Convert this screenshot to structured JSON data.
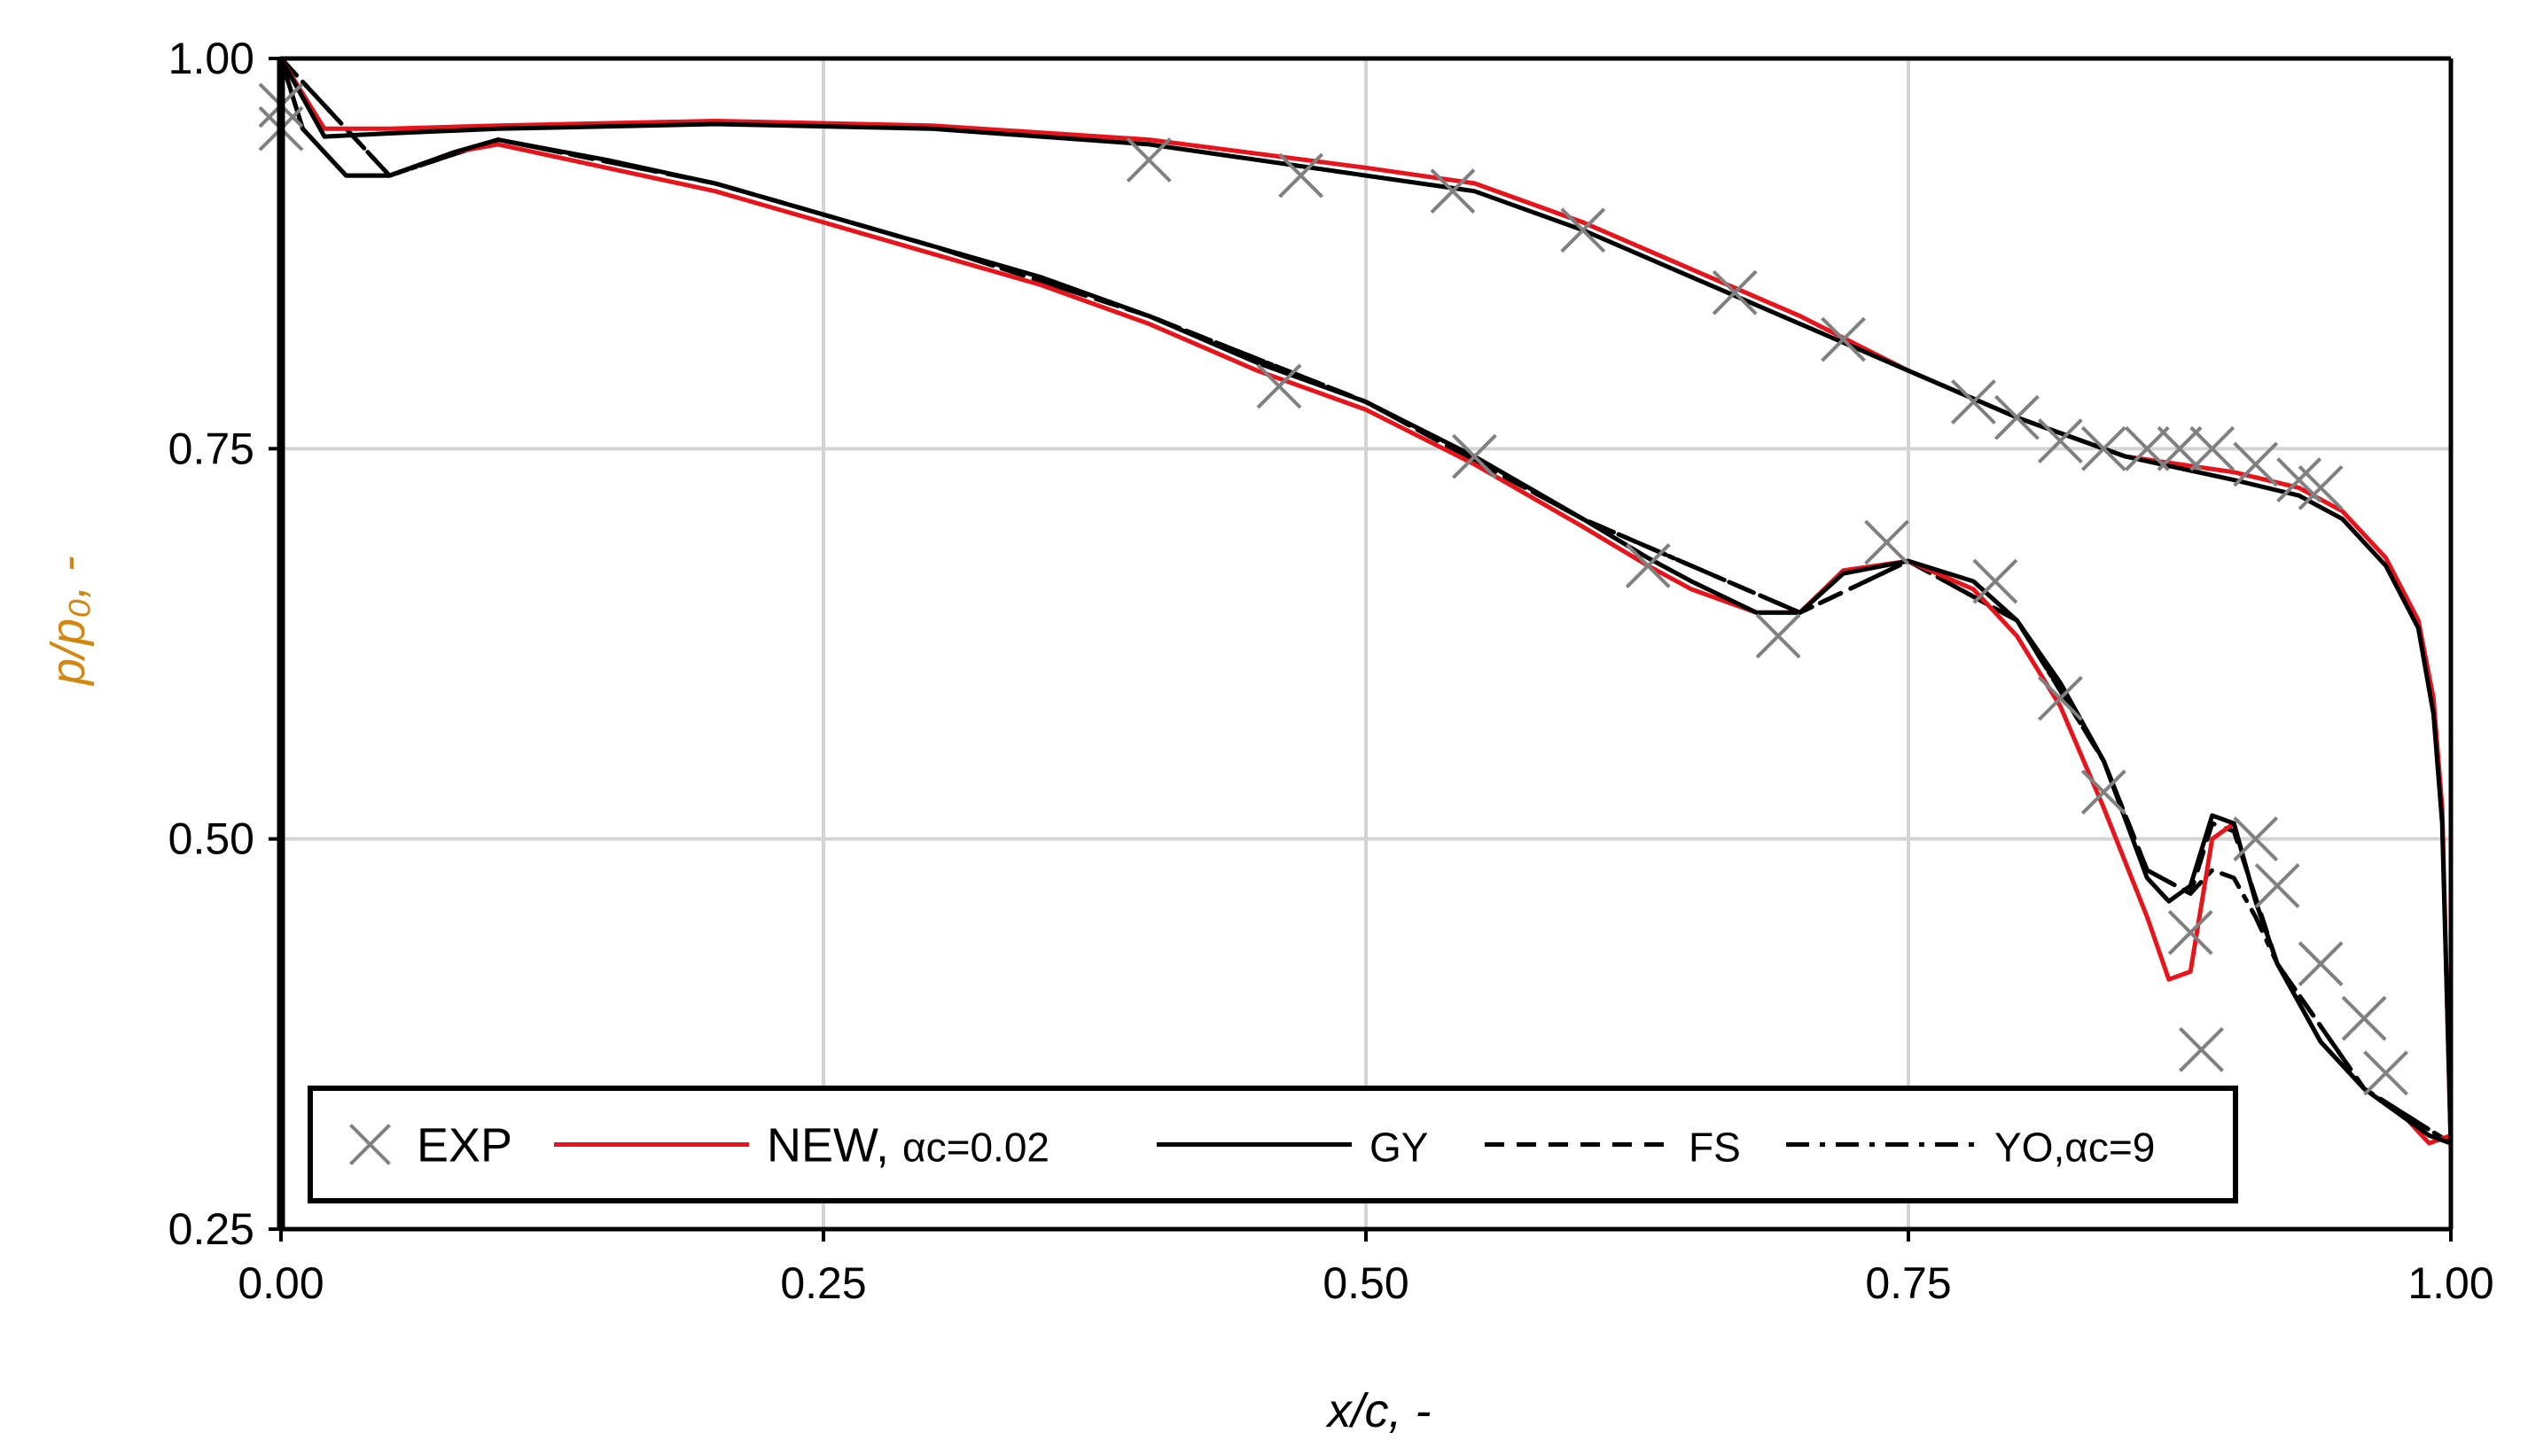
{
  "chart_data": {
    "type": "line",
    "title": "",
    "xlabel": "x/c, -",
    "ylabel": "p/p₀, -",
    "xlim": [
      0,
      1
    ],
    "ylim": [
      0.25,
      1
    ],
    "xticks": [
      "0.00",
      "0.25",
      "0.50",
      "0.75",
      "1.00"
    ],
    "yticks": [
      "0.25",
      "0.50",
      "0.75",
      "1.00"
    ],
    "grid": true,
    "legend_position": "bottom-inside",
    "colors": {
      "black": "#000000",
      "red": "#e8141b",
      "exp": "#808080",
      "grid": "#d4d4d4",
      "ylabel": "#d4870f"
    },
    "legend": [
      {
        "key": "exp",
        "label": "EXP",
        "style": "marker-x"
      },
      {
        "key": "new",
        "label": "NEW, ",
        "sub": "αc=0.02",
        "style": "red-solid"
      },
      {
        "key": "gy",
        "label": "GY",
        "style": "black-solid"
      },
      {
        "key": "fs",
        "label": "FS",
        "style": "black-dashed"
      },
      {
        "key": "yo",
        "label": "YO,αc=9",
        "style": "black-dashdot"
      }
    ],
    "series": [
      {
        "name": "EXP",
        "style": "marker-x",
        "x": [
          0.0,
          0.0,
          0.4,
          0.47,
          0.54,
          0.6,
          0.67,
          0.72,
          0.78,
          0.8,
          0.82,
          0.84,
          0.86,
          0.875,
          0.89,
          0.91,
          0.93,
          0.94,
          0.46,
          0.55,
          0.63,
          0.69,
          0.74,
          0.79,
          0.82,
          0.84,
          0.88,
          0.885,
          0.91,
          0.92,
          0.94,
          0.96,
          0.97
        ],
        "y": [
          0.955,
          0.97,
          0.935,
          0.925,
          0.915,
          0.89,
          0.85,
          0.82,
          0.78,
          0.77,
          0.755,
          0.75,
          0.75,
          0.75,
          0.75,
          0.74,
          0.73,
          0.725,
          0.79,
          0.745,
          0.675,
          0.63,
          0.69,
          0.665,
          0.59,
          0.53,
          0.44,
          0.365,
          0.5,
          0.47,
          0.42,
          0.385,
          0.35
        ]
      },
      {
        "name": "NEW, αc=0.02 (suction)",
        "style": "red-solid",
        "x": [
          0.0,
          0.01,
          0.03,
          0.05,
          0.08,
          0.1,
          0.15,
          0.2,
          0.25,
          0.3,
          0.35,
          0.4,
          0.45,
          0.5,
          0.55,
          0.6,
          0.63,
          0.65,
          0.68,
          0.7,
          0.72,
          0.75,
          0.78,
          0.8,
          0.82,
          0.84,
          0.86,
          0.87,
          0.88,
          0.89,
          0.9,
          0.91,
          0.92,
          0.94,
          0.96,
          0.98,
          0.99,
          1.0
        ],
        "y": [
          1.0,
          0.955,
          0.925,
          0.925,
          0.94,
          0.945,
          0.93,
          0.915,
          0.895,
          0.875,
          0.855,
          0.83,
          0.8,
          0.775,
          0.74,
          0.7,
          0.675,
          0.66,
          0.645,
          0.645,
          0.672,
          0.678,
          0.66,
          0.63,
          0.585,
          0.52,
          0.45,
          0.41,
          0.415,
          0.5,
          0.51,
          0.46,
          0.42,
          0.37,
          0.34,
          0.32,
          0.305,
          0.31
        ]
      },
      {
        "name": "NEW, αc=0.02 (pressure)",
        "style": "red-solid",
        "x": [
          0.0,
          0.02,
          0.05,
          0.1,
          0.2,
          0.3,
          0.4,
          0.5,
          0.55,
          0.6,
          0.65,
          0.7,
          0.75,
          0.8,
          0.85,
          0.9,
          0.93,
          0.95,
          0.97,
          0.985,
          0.992,
          0.996,
          1.0
        ],
        "y": [
          1.0,
          0.955,
          0.955,
          0.957,
          0.96,
          0.957,
          0.948,
          0.93,
          0.92,
          0.895,
          0.865,
          0.835,
          0.8,
          0.77,
          0.745,
          0.735,
          0.725,
          0.71,
          0.68,
          0.64,
          0.59,
          0.52,
          0.3
        ]
      },
      {
        "name": "GY (suction)",
        "style": "black-solid",
        "x": [
          0.0,
          0.01,
          0.03,
          0.05,
          0.08,
          0.1,
          0.15,
          0.2,
          0.25,
          0.3,
          0.35,
          0.4,
          0.45,
          0.5,
          0.55,
          0.6,
          0.63,
          0.65,
          0.68,
          0.7,
          0.72,
          0.75,
          0.78,
          0.8,
          0.82,
          0.84,
          0.86,
          0.87,
          0.88,
          0.89,
          0.9,
          0.91,
          0.92,
          0.94,
          0.96,
          0.98,
          0.99,
          1.0
        ],
        "y": [
          1.0,
          0.955,
          0.925,
          0.925,
          0.94,
          0.948,
          0.935,
          0.92,
          0.9,
          0.88,
          0.86,
          0.835,
          0.805,
          0.78,
          0.745,
          0.705,
          0.68,
          0.665,
          0.645,
          0.645,
          0.67,
          0.678,
          0.665,
          0.64,
          0.6,
          0.55,
          0.475,
          0.46,
          0.47,
          0.515,
          0.51,
          0.46,
          0.42,
          0.37,
          0.34,
          0.32,
          0.31,
          0.305
        ]
      },
      {
        "name": "GY (pressure)",
        "style": "black-solid",
        "x": [
          0.0,
          0.02,
          0.05,
          0.1,
          0.2,
          0.3,
          0.4,
          0.5,
          0.55,
          0.6,
          0.65,
          0.7,
          0.75,
          0.8,
          0.85,
          0.9,
          0.93,
          0.95,
          0.97,
          0.985,
          0.992,
          0.996,
          1.0
        ],
        "y": [
          1.0,
          0.95,
          0.952,
          0.955,
          0.958,
          0.955,
          0.945,
          0.925,
          0.915,
          0.89,
          0.86,
          0.83,
          0.8,
          0.77,
          0.745,
          0.73,
          0.72,
          0.705,
          0.675,
          0.635,
          0.58,
          0.51,
          0.305
        ]
      },
      {
        "name": "FS (suction)",
        "style": "black-dashed",
        "x": [
          0.0,
          0.05,
          0.1,
          0.2,
          0.3,
          0.4,
          0.5,
          0.6,
          0.7,
          0.75,
          0.8,
          0.84,
          0.86,
          0.88,
          0.89,
          0.9,
          0.92,
          0.96,
          1.0
        ],
        "y": [
          1.0,
          0.925,
          0.948,
          0.92,
          0.88,
          0.835,
          0.78,
          0.705,
          0.645,
          0.678,
          0.64,
          0.55,
          0.48,
          0.465,
          0.51,
          0.505,
          0.42,
          0.34,
          0.305
        ]
      },
      {
        "name": "YO,αc=9 (suction)",
        "style": "black-dashdot",
        "x": [
          0.0,
          0.05,
          0.1,
          0.2,
          0.3,
          0.4,
          0.5,
          0.6,
          0.7,
          0.75,
          0.8,
          0.84,
          0.86,
          0.88,
          0.89,
          0.9,
          0.91,
          0.92,
          0.96,
          1.0
        ],
        "y": [
          1.0,
          0.925,
          0.948,
          0.92,
          0.88,
          0.835,
          0.78,
          0.705,
          0.645,
          0.678,
          0.64,
          0.55,
          0.48,
          0.465,
          0.48,
          0.475,
          0.45,
          0.42,
          0.34,
          0.305
        ]
      }
    ]
  }
}
